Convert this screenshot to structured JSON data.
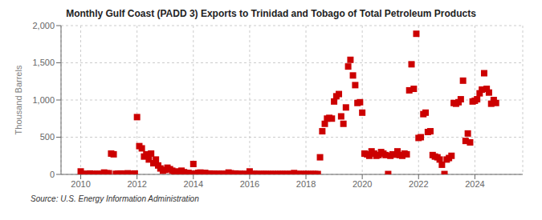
{
  "chart_data": {
    "type": "scatter",
    "title": "Monthly Gulf Coast (PADD 3) Exports to Trinidad and Tobago of Total Petroleum Products",
    "ylabel": "Thousand Barrels",
    "annotations": [
      "Source: U.S. Energy Information Administration"
    ],
    "color": "#cc0000",
    "marker": "square",
    "grid": true,
    "xlim": [
      2009.3,
      2025.7
    ],
    "xticks": [
      2010,
      2012,
      2014,
      2016,
      2018,
      2020,
      2022,
      2024
    ],
    "ylim": [
      0,
      2000
    ],
    "yticks": [
      0,
      500,
      {
        "value": 1000,
        "label": "1,000"
      },
      {
        "value": 1500,
        "label": "1,500"
      },
      {
        "value": 2000,
        "label": "2,000"
      }
    ],
    "x": [
      2010.0,
      2010.08,
      2010.17,
      2010.25,
      2010.33,
      2010.42,
      2010.5,
      2010.58,
      2010.67,
      2010.75,
      2010.83,
      2010.92,
      2011.0,
      2011.08,
      2011.17,
      2011.25,
      2011.33,
      2011.42,
      2011.5,
      2011.58,
      2011.67,
      2011.75,
      2011.83,
      2011.92,
      2012.0,
      2012.08,
      2012.17,
      2012.25,
      2012.33,
      2012.42,
      2012.5,
      2012.58,
      2012.67,
      2012.75,
      2012.83,
      2012.92,
      2013.0,
      2013.08,
      2013.17,
      2013.25,
      2013.33,
      2013.42,
      2013.5,
      2013.58,
      2013.67,
      2013.75,
      2013.83,
      2013.92,
      2014.0,
      2014.08,
      2014.17,
      2014.25,
      2014.33,
      2014.42,
      2014.5,
      2014.58,
      2014.67,
      2014.75,
      2014.83,
      2014.92,
      2015.0,
      2015.08,
      2015.17,
      2015.25,
      2015.33,
      2015.42,
      2015.5,
      2015.58,
      2015.67,
      2015.75,
      2015.83,
      2015.92,
      2016.0,
      2016.08,
      2016.17,
      2016.25,
      2016.33,
      2016.42,
      2016.5,
      2016.58,
      2016.67,
      2016.75,
      2016.83,
      2016.92,
      2017.0,
      2017.08,
      2017.17,
      2017.25,
      2017.33,
      2017.42,
      2017.5,
      2017.58,
      2017.67,
      2017.75,
      2017.83,
      2017.92,
      2018.0,
      2018.08,
      2018.17,
      2018.25,
      2018.33,
      2018.42,
      2018.5,
      2018.58,
      2018.67,
      2018.75,
      2018.83,
      2018.92,
      2019.0,
      2019.08,
      2019.17,
      2019.25,
      2019.33,
      2019.42,
      2019.5,
      2019.58,
      2019.67,
      2019.75,
      2019.83,
      2019.92,
      2020.0,
      2020.08,
      2020.17,
      2020.25,
      2020.33,
      2020.42,
      2020.5,
      2020.58,
      2020.67,
      2020.75,
      2020.83,
      2020.92,
      2021.0,
      2021.08,
      2021.17,
      2021.25,
      2021.33,
      2021.42,
      2021.5,
      2021.58,
      2021.67,
      2021.75,
      2021.83,
      2021.92,
      2022.0,
      2022.08,
      2022.17,
      2022.25,
      2022.33,
      2022.42,
      2022.5,
      2022.58,
      2022.67,
      2022.75,
      2022.83,
      2022.92,
      2023.0,
      2023.08,
      2023.17,
      2023.25,
      2023.33,
      2023.42,
      2023.5,
      2023.58,
      2023.67,
      2023.75,
      2023.83,
      2023.92,
      2024.0,
      2024.08,
      2024.17,
      2024.25,
      2024.33,
      2024.42,
      2024.5,
      2024.58,
      2024.67,
      2024.75
    ],
    "values": [
      40,
      5,
      8,
      5,
      12,
      6,
      5,
      8,
      5,
      6,
      25,
      15,
      15,
      280,
      270,
      8,
      10,
      12,
      6,
      10,
      15,
      5,
      8,
      12,
      770,
      380,
      350,
      240,
      270,
      200,
      280,
      150,
      200,
      120,
      80,
      50,
      60,
      90,
      70,
      50,
      30,
      40,
      20,
      50,
      30,
      15,
      20,
      10,
      140,
      10,
      20,
      25,
      15,
      20,
      10,
      12,
      8,
      10,
      5,
      8,
      8,
      5,
      6,
      25,
      15,
      5,
      12,
      5,
      8,
      5,
      6,
      5,
      40,
      5,
      8,
      6,
      5,
      5,
      6,
      5,
      5,
      5,
      5,
      5,
      5,
      5,
      6,
      5,
      5,
      6,
      5,
      18,
      5,
      5,
      5,
      5,
      5,
      5,
      5,
      5,
      5,
      5,
      230,
      580,
      680,
      750,
      760,
      750,
      980,
      1050,
      1080,
      780,
      680,
      900,
      1450,
      1540,
      1330,
      1200,
      960,
      970,
      830,
      280,
      270,
      250,
      310,
      280,
      250,
      260,
      300,
      280,
      260,
      5,
      250,
      270,
      265,
      310,
      260,
      250,
      280,
      270,
      1130,
      1480,
      1150,
      1890,
      490,
      500,
      810,
      830,
      570,
      580,
      260,
      240,
      230,
      200,
      130,
      5,
      200,
      220,
      250,
      960,
      950,
      970,
      1010,
      1260,
      450,
      550,
      430,
      980,
      990,
      1010,
      1090,
      1140,
      1360,
      1150,
      1100,
      950,
      1000,
      960
    ]
  }
}
